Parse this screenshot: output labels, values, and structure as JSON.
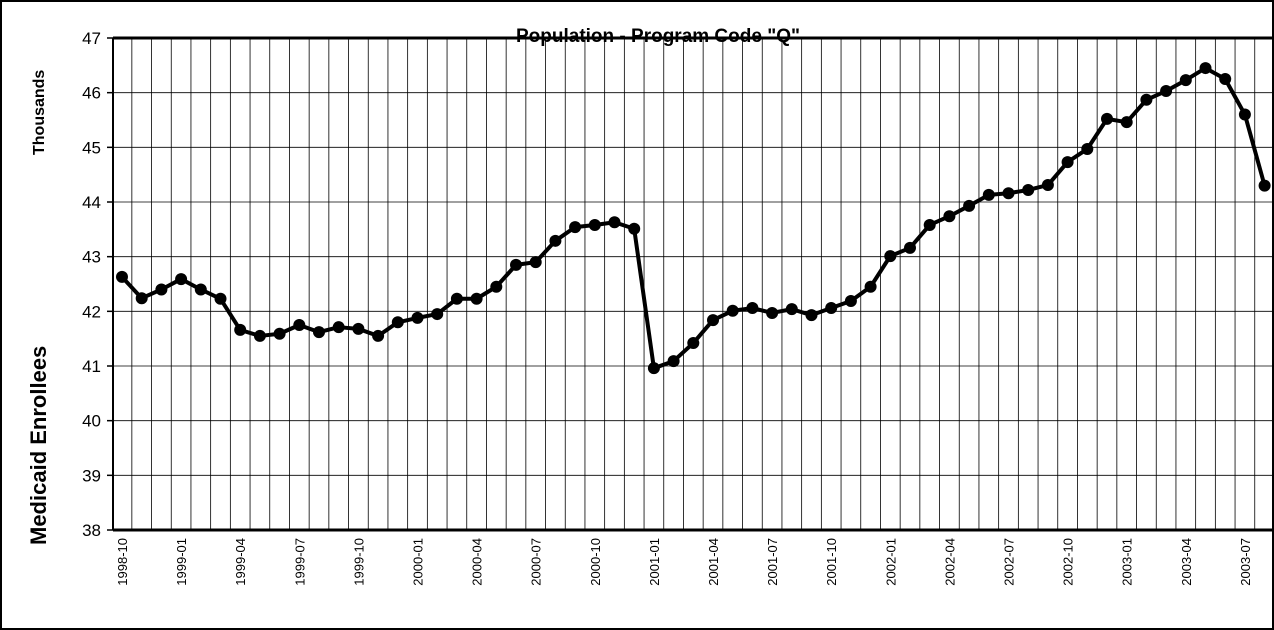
{
  "chart_data": {
    "type": "line",
    "title": "Population - Program Code \"Q\"",
    "ylabel": "Medicaid Enrollees",
    "yunit": "Thousands",
    "categories": [
      "1998-10",
      null,
      null,
      "1999-01",
      null,
      null,
      "1999-04",
      null,
      null,
      "1999-07",
      null,
      null,
      "1999-10",
      null,
      null,
      "2000-01",
      null,
      null,
      "2000-04",
      null,
      null,
      "2000-07",
      null,
      null,
      "2000-10",
      null,
      null,
      "2001-01",
      null,
      null,
      "2001-04",
      null,
      null,
      "2001-07",
      null,
      null,
      "2001-10",
      null,
      null,
      "2002-01",
      null,
      null,
      "2002-04",
      null,
      null,
      "2002-07",
      null,
      null,
      "2002-10",
      null,
      null,
      "2003-01",
      null,
      null,
      "2003-04",
      null,
      null,
      "2003-07",
      null
    ],
    "series": [
      {
        "name": "Medicaid Enrollees",
        "color": "#000000",
        "values": [
          42.63,
          42.24,
          42.4,
          42.59,
          42.4,
          42.23,
          41.66,
          41.55,
          41.59,
          41.75,
          41.62,
          41.71,
          41.68,
          41.55,
          41.8,
          41.88,
          41.95,
          42.23,
          42.23,
          42.45,
          42.85,
          42.9,
          43.29,
          43.54,
          43.58,
          43.63,
          43.51,
          40.96,
          41.09,
          41.42,
          41.84,
          42.01,
          42.06,
          41.97,
          42.04,
          41.93,
          42.06,
          42.19,
          42.45,
          43.01,
          43.16,
          43.58,
          43.74,
          43.93,
          44.13,
          44.16,
          44.22,
          44.31,
          44.73,
          44.97,
          45.52,
          45.46,
          45.87,
          46.03,
          46.23,
          46.45,
          46.25,
          45.6,
          44.3
        ]
      }
    ],
    "ylim": [
      38,
      47
    ],
    "yticks": [
      38,
      39,
      40,
      41,
      42,
      43,
      44,
      45,
      46,
      47
    ],
    "grid": true
  }
}
